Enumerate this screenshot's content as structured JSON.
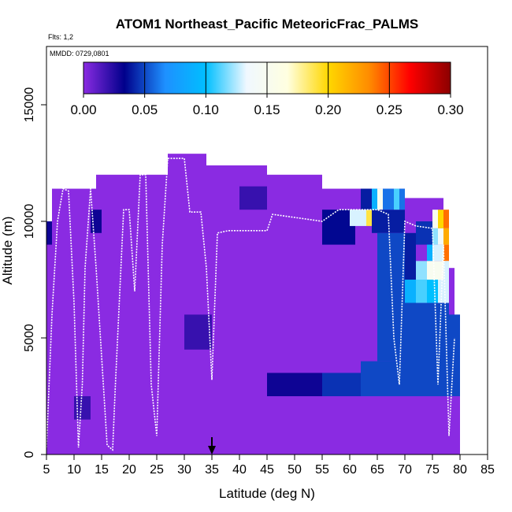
{
  "chart_data": {
    "type": "heatmap",
    "title": "ATOM1 Northeast_Pacific MeteoricFrac_PALMS",
    "flights_label": "Flts: 1,2",
    "mmdd_label": "MMDD: 0729,0801",
    "xlabel": "Latitude (deg N)",
    "ylabel": "Altitude (m)",
    "xlim": [
      5,
      85
    ],
    "ylim": [
      0,
      17500
    ],
    "x_ticks": [
      5,
      10,
      15,
      20,
      25,
      30,
      35,
      40,
      45,
      50,
      55,
      60,
      65,
      70,
      75,
      80,
      85
    ],
    "y_ticks": [
      0,
      5000,
      10000,
      15000
    ],
    "colorbar": {
      "range": [
        0.0,
        0.3
      ],
      "tick_labels": [
        "0.00",
        "0.05",
        "0.10",
        "0.15",
        "0.20",
        "0.25",
        "0.30"
      ],
      "stops": [
        "#8a2be2",
        "#00008b",
        "#1e90ff",
        "#00bfff",
        "#f0f8ff",
        "#ffffe0",
        "#ffd700",
        "#ff8c00",
        "#ff0000",
        "#8b0000"
      ]
    },
    "marker_latitude": 35,
    "coverage": [
      {
        "lat": [
          5,
          6
        ],
        "alt": [
          0,
          10000
        ]
      },
      {
        "lat": [
          6,
          7
        ],
        "alt": [
          0,
          11400
        ]
      },
      {
        "lat": [
          7,
          14
        ],
        "alt": [
          0,
          11400
        ]
      },
      {
        "lat": [
          14,
          15
        ],
        "alt": [
          0,
          12000
        ]
      },
      {
        "lat": [
          15,
          27
        ],
        "alt": [
          0,
          12000
        ]
      },
      {
        "lat": [
          27,
          34
        ],
        "alt": [
          0,
          12900
        ]
      },
      {
        "lat": [
          34,
          45
        ],
        "alt": [
          0,
          12400
        ]
      },
      {
        "lat": [
          45,
          55
        ],
        "alt": [
          0,
          12000
        ]
      },
      {
        "lat": [
          55,
          62
        ],
        "alt": [
          0,
          11400
        ]
      },
      {
        "lat": [
          62,
          70
        ],
        "alt": [
          0,
          11400
        ]
      },
      {
        "lat": [
          70,
          77
        ],
        "alt": [
          0,
          11000
        ]
      },
      {
        "lat": [
          77,
          79
        ],
        "alt": [
          0,
          8000
        ]
      },
      {
        "lat": [
          79,
          80
        ],
        "alt": [
          0,
          6000
        ]
      }
    ],
    "cells": [
      {
        "lat": [
          5,
          6
        ],
        "alt": [
          9000,
          10000
        ],
        "value": 0.03
      },
      {
        "lat": [
          10,
          13
        ],
        "alt": [
          1500,
          2500
        ],
        "value": 0.02
      },
      {
        "lat": [
          13,
          15
        ],
        "alt": [
          9500,
          10500
        ],
        "value": 0.03
      },
      {
        "lat": [
          30,
          35
        ],
        "alt": [
          4500,
          6000
        ],
        "value": 0.02
      },
      {
        "lat": [
          40,
          45
        ],
        "alt": [
          10500,
          11500
        ],
        "value": 0.02
      },
      {
        "lat": [
          45,
          55
        ],
        "alt": [
          2500,
          3500
        ],
        "value": 0.03
      },
      {
        "lat": [
          55,
          62
        ],
        "alt": [
          2500,
          3500
        ],
        "value": 0.045
      },
      {
        "lat": [
          62,
          70
        ],
        "alt": [
          2500,
          4000
        ],
        "value": 0.05
      },
      {
        "lat": [
          55,
          61
        ],
        "alt": [
          9000,
          10500
        ],
        "value": 0.035
      },
      {
        "lat": [
          60,
          63
        ],
        "alt": [
          9800,
          10500
        ],
        "value": 0.13
      },
      {
        "lat": [
          63,
          64
        ],
        "alt": [
          9800,
          10500
        ],
        "value": 0.19
      },
      {
        "lat": [
          64,
          70
        ],
        "alt": [
          9500,
          10500
        ],
        "value": 0.04
      },
      {
        "lat": [
          62,
          64
        ],
        "alt": [
          10500,
          11400
        ],
        "value": 0.04
      },
      {
        "lat": [
          64,
          65
        ],
        "alt": [
          10500,
          11400
        ],
        "value": 0.09
      },
      {
        "lat": [
          65,
          66
        ],
        "alt": [
          10500,
          11400
        ],
        "value": 0.15
      },
      {
        "lat": [
          66,
          68
        ],
        "alt": [
          10500,
          11400
        ],
        "value": 0.06
      },
      {
        "lat": [
          68,
          69
        ],
        "alt": [
          10500,
          11400
        ],
        "value": 0.11
      },
      {
        "lat": [
          69,
          70
        ],
        "alt": [
          10500,
          11400
        ],
        "value": 0.06
      },
      {
        "lat": [
          65,
          70
        ],
        "alt": [
          4000,
          9500
        ],
        "value": 0.05
      },
      {
        "lat": [
          70,
          72
        ],
        "alt": [
          5000,
          9500
        ],
        "value": 0.04
      },
      {
        "lat": [
          72,
          75
        ],
        "alt": [
          9000,
          10000
        ],
        "value": 0.045
      },
      {
        "lat": [
          75,
          76
        ],
        "alt": [
          9700,
          10500
        ],
        "value": 0.15
      },
      {
        "lat": [
          76,
          77
        ],
        "alt": [
          9700,
          10500
        ],
        "value": 0.2
      },
      {
        "lat": [
          77,
          78
        ],
        "alt": [
          9700,
          10500
        ],
        "value": 0.24
      },
      {
        "lat": [
          75,
          76
        ],
        "alt": [
          9000,
          9700
        ],
        "value": 0.12
      },
      {
        "lat": [
          76,
          77
        ],
        "alt": [
          9000,
          9700
        ],
        "value": 0.14
      },
      {
        "lat": [
          77,
          78
        ],
        "alt": [
          9000,
          9700
        ],
        "value": 0.22
      },
      {
        "lat": [
          74,
          75
        ],
        "alt": [
          8300,
          9000
        ],
        "value": 0.09
      },
      {
        "lat": [
          75,
          77
        ],
        "alt": [
          8300,
          9000
        ],
        "value": 0.13
      },
      {
        "lat": [
          77,
          78
        ],
        "alt": [
          8300,
          9000
        ],
        "value": 0.24
      },
      {
        "lat": [
          72,
          74
        ],
        "alt": [
          7500,
          8300
        ],
        "value": 0.12
      },
      {
        "lat": [
          74,
          77
        ],
        "alt": [
          7500,
          8300
        ],
        "value": 0.15
      },
      {
        "lat": [
          77,
          78
        ],
        "alt": [
          7500,
          8300
        ],
        "value": 0.13
      },
      {
        "lat": [
          70,
          72
        ],
        "alt": [
          6500,
          7500
        ],
        "value": 0.09
      },
      {
        "lat": [
          72,
          74
        ],
        "alt": [
          6500,
          7500
        ],
        "value": 0.11
      },
      {
        "lat": [
          74,
          76
        ],
        "alt": [
          6500,
          7500
        ],
        "value": 0.1
      },
      {
        "lat": [
          76,
          78
        ],
        "alt": [
          6500,
          7500
        ],
        "value": 0.13
      },
      {
        "lat": [
          70,
          78
        ],
        "alt": [
          5000,
          6500
        ],
        "value": 0.05
      },
      {
        "lat": [
          70,
          77
        ],
        "alt": [
          2500,
          5000
        ],
        "value": 0.05
      },
      {
        "lat": [
          77,
          80
        ],
        "alt": [
          2500,
          6000
        ],
        "value": 0.05
      }
    ],
    "flight_track": [
      [
        5,
        300
      ],
      [
        6,
        6000
      ],
      [
        7,
        10000
      ],
      [
        8,
        11400
      ],
      [
        9,
        11300
      ],
      [
        10,
        6500
      ],
      [
        10.8,
        300
      ],
      [
        11.5,
        3000
      ],
      [
        12,
        8000
      ],
      [
        13,
        11400
      ],
      [
        14,
        8000
      ],
      [
        16,
        400
      ],
      [
        17,
        200
      ],
      [
        17.5,
        3000
      ],
      [
        19,
        10500
      ],
      [
        20,
        10500
      ],
      [
        21,
        7000
      ],
      [
        22,
        12000
      ],
      [
        23,
        12000
      ],
      [
        24,
        3000
      ],
      [
        25,
        800
      ],
      [
        26,
        9000
      ],
      [
        27,
        12700
      ],
      [
        30,
        12700
      ],
      [
        31,
        10400
      ],
      [
        33,
        10400
      ],
      [
        34,
        8000
      ],
      [
        35,
        3200
      ],
      [
        36,
        9500
      ],
      [
        38,
        9600
      ],
      [
        45,
        9600
      ],
      [
        46,
        10300
      ],
      [
        52,
        10100
      ],
      [
        55,
        10000
      ],
      [
        58,
        10500
      ],
      [
        65,
        10500
      ],
      [
        67,
        10300
      ],
      [
        68,
        5000
      ],
      [
        69,
        3000
      ],
      [
        70,
        10000
      ],
      [
        72,
        9800
      ],
      [
        75,
        9700
      ],
      [
        76,
        3000
      ],
      [
        77,
        9000
      ],
      [
        78,
        800
      ],
      [
        79,
        5000
      ]
    ]
  }
}
